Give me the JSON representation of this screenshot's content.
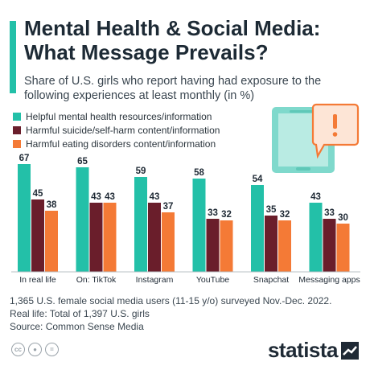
{
  "title": "Mental Health & Social Media: What Message Prevails?",
  "subtitle": "Share of U.S. girls who report having had exposure to the following experiences at least monthly (in %)",
  "colors": {
    "helpful": "#23c0a8",
    "suicide": "#6a1e2b",
    "eating": "#f47a36",
    "accent": "#23c0a8"
  },
  "chart_data": {
    "type": "bar",
    "categories": [
      "In real life",
      "On: TikTok",
      "Instagram",
      "YouTube",
      "Snapchat",
      "Messaging apps"
    ],
    "series": [
      {
        "name": "Helpful mental health resources/information",
        "values": [
          67,
          65,
          59,
          58,
          54,
          43
        ]
      },
      {
        "name": "Harmful suicide/self-harm content/information",
        "values": [
          45,
          43,
          43,
          33,
          35,
          33
        ]
      },
      {
        "name": "Harmful eating disorders content/information",
        "values": [
          38,
          43,
          37,
          32,
          32,
          30
        ]
      }
    ],
    "ylim": [
      0,
      70
    ],
    "grid": false,
    "legend_position": "top-left"
  },
  "footnote": [
    "1,365 U.S. female social media users (11-15 y/o) surveyed Nov.-Dec. 2022.",
    "Real life: Total of 1,397 U.S. girls",
    "Source: Common Sense Media"
  ],
  "icons": [
    "phone-alert-icon",
    "cc-icon",
    "person-icon",
    "equals-icon",
    "statista-logo-icon"
  ],
  "brand": "statista"
}
